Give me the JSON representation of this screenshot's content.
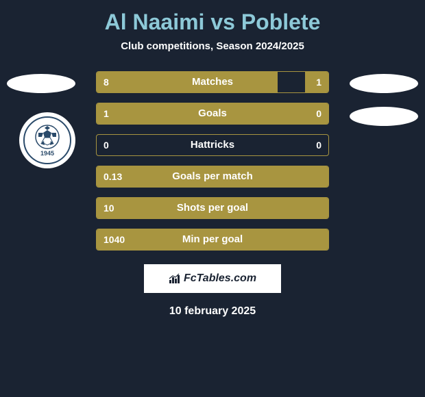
{
  "title": "Al Naaimi vs Poblete",
  "subtitle": "Club competitions, Season 2024/2025",
  "colors": {
    "background": "#1a2332",
    "title": "#8dc9d8",
    "bar_fill": "#a89540",
    "bar_border": "#a89540",
    "text": "#ffffff",
    "badge_bg": "#ffffff",
    "club_border": "#2a4a6a"
  },
  "club_left": {
    "year": "1945"
  },
  "stats": [
    {
      "label": "Matches",
      "left_val": "8",
      "right_val": "1",
      "left_pct": 78,
      "right_pct": 10
    },
    {
      "label": "Goals",
      "left_val": "1",
      "right_val": "0",
      "left_pct": 100,
      "right_pct": 0
    },
    {
      "label": "Hattricks",
      "left_val": "0",
      "right_val": "0",
      "left_pct": 0,
      "right_pct": 0
    },
    {
      "label": "Goals per match",
      "left_val": "0.13",
      "right_val": "",
      "left_pct": 100,
      "right_pct": 0
    },
    {
      "label": "Shots per goal",
      "left_val": "10",
      "right_val": "",
      "left_pct": 100,
      "right_pct": 0
    },
    {
      "label": "Min per goal",
      "left_val": "1040",
      "right_val": "",
      "left_pct": 100,
      "right_pct": 0
    }
  ],
  "footer_brand": "FcTables.com",
  "footer_date": "10 february 2025"
}
